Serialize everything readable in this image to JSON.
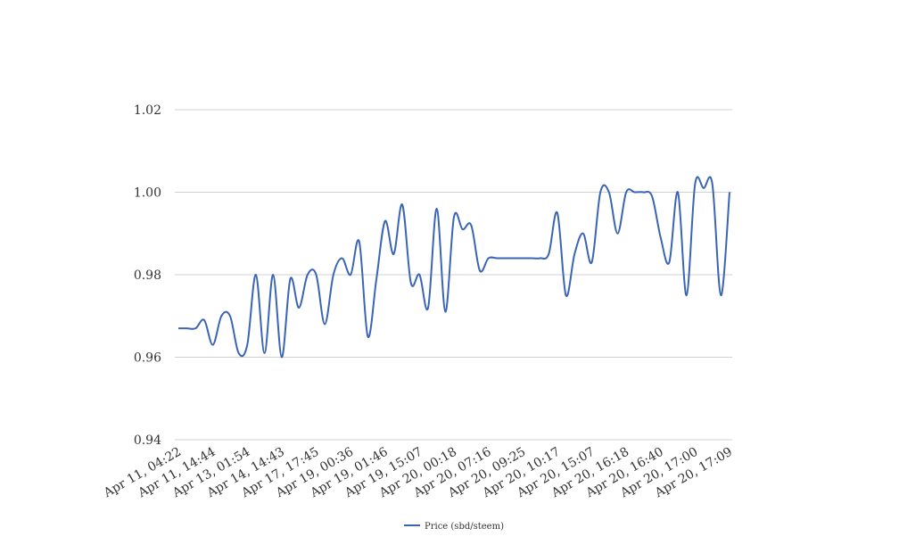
{
  "chart_data": {
    "type": "line",
    "categories": [
      "Apr 11, 04:22",
      null,
      null,
      null,
      "Apr 11, 14:44",
      null,
      null,
      null,
      "Apr 13, 01:54",
      null,
      null,
      null,
      "Apr 14, 14:43",
      null,
      null,
      null,
      "Apr 17, 17:45",
      null,
      null,
      null,
      "Apr 19, 00:36",
      null,
      null,
      null,
      "Apr 19, 01:46",
      null,
      null,
      null,
      "Apr 19, 15:07",
      null,
      null,
      null,
      "Apr 20, 00:18",
      null,
      null,
      null,
      "Apr 20, 07:16",
      null,
      null,
      null,
      "Apr 20, 09:25",
      null,
      null,
      null,
      "Apr 20, 10:17",
      null,
      null,
      null,
      "Apr 20, 15:07",
      null,
      null,
      null,
      "Apr 20, 16:18",
      null,
      null,
      null,
      "Apr 20, 16:40",
      null,
      null,
      null,
      "Apr 20, 17:00",
      null,
      null,
      null,
      "Apr 20, 17:09"
    ],
    "series": [
      {
        "name": "Price (sbd/steem)",
        "color": "#3a65b4",
        "values": [
          0.967,
          0.967,
          0.967,
          0.969,
          0.963,
          0.97,
          0.97,
          0.961,
          0.963,
          0.98,
          0.961,
          0.98,
          0.96,
          0.979,
          0.972,
          0.98,
          0.98,
          0.968,
          0.98,
          0.984,
          0.98,
          0.988,
          0.965,
          0.979,
          0.993,
          0.985,
          0.997,
          0.978,
          0.98,
          0.972,
          0.996,
          0.971,
          0.994,
          0.991,
          0.992,
          0.981,
          0.984,
          0.984,
          0.984,
          0.984,
          0.984,
          0.984,
          0.984,
          0.985,
          0.995,
          0.975,
          0.985,
          0.99,
          0.983,
          1.0,
          1.0,
          0.99,
          1.0,
          1.0,
          1.0,
          0.999,
          0.989,
          0.983,
          1.0,
          0.975,
          1.002,
          1.001,
          1.002,
          0.975,
          1.0
        ]
      }
    ],
    "ylim": [
      0.94,
      1.02
    ],
    "yticks": [
      {
        "value": 0.94,
        "label": "0.94"
      },
      {
        "value": 0.96,
        "label": "0.96"
      },
      {
        "value": 0.98,
        "label": "0.98"
      },
      {
        "value": 1.0,
        "label": "1.00"
      },
      {
        "value": 1.02,
        "label": "1.02"
      }
    ],
    "grid": true,
    "legend": "bottom"
  }
}
